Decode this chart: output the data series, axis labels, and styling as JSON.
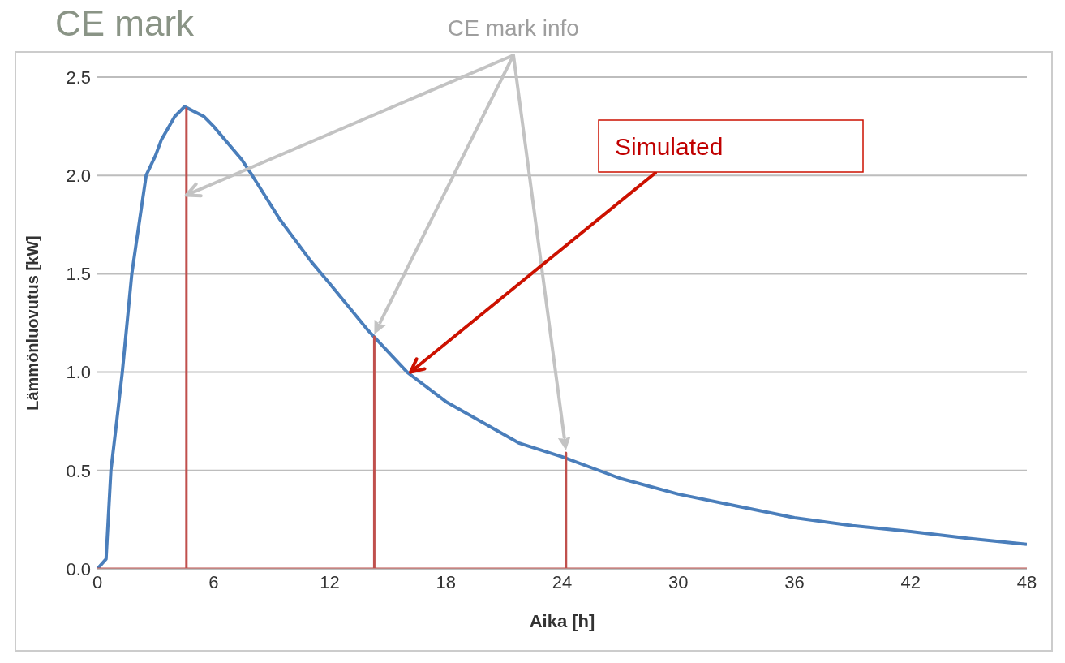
{
  "chart_data": {
    "type": "line",
    "title": "CE mark",
    "xlabel": "Aika [h]",
    "ylabel": "Lämmönluovutus [kW]",
    "xlim": [
      0,
      48
    ],
    "xticks": [
      0,
      6,
      12,
      18,
      24,
      30,
      36,
      42,
      48
    ],
    "ylim": [
      0,
      2.5
    ],
    "yticks": [
      {
        "value": 0,
        "label": "0.0"
      },
      {
        "value": 0.5,
        "label": "0.5"
      },
      {
        "value": 1,
        "label": "1.0"
      },
      {
        "value": 1.5,
        "label": "1.5"
      },
      {
        "value": 2,
        "label": "2.0"
      },
      {
        "value": 2.5,
        "label": "2.5"
      }
    ],
    "grid": "y",
    "marker": "none",
    "line_style": "solid",
    "series": [
      {
        "color": "#4a7ebb",
        "x": [
          0,
          0.45,
          0.7,
          1,
          1.29,
          1.78,
          2,
          2.52,
          3,
          3.3,
          4,
          4.5,
          5.5,
          6,
          7.46,
          8,
          9.4,
          10,
          11.06,
          12,
          14,
          16,
          18,
          21.76,
          24,
          27,
          30,
          33,
          36,
          39,
          42,
          45,
          48
        ],
        "values": [
          0,
          0.05,
          0.5,
          0.75,
          1.0,
          1.5,
          1.65,
          2.0,
          2.1,
          2.18,
          2.3,
          2.35,
          2.3,
          2.25,
          2.08,
          2.0,
          1.78,
          1.7,
          1.56,
          1.45,
          1.21,
          1.0,
          0.85,
          0.64,
          0.57,
          0.46,
          0.38,
          0.32,
          0.26,
          0.22,
          0.19,
          0.155,
          0.125
        ]
      },
      {
        "color": "#c0504d",
        "x": [
          0,
          4.6,
          4.6,
          4.6,
          14.3,
          14.3,
          14.3,
          24.2,
          24.2,
          24.2,
          48
        ],
        "values": [
          0,
          0,
          2.34,
          0,
          0,
          1.18,
          0,
          0,
          0.59,
          0,
          0
        ]
      }
    ],
    "annotations": [
      {
        "text": "CE mark info",
        "x": 4.6,
        "y": 1.9
      },
      {
        "text": "Simulated",
        "x": 16,
        "y": 1.0
      }
    ]
  }
}
